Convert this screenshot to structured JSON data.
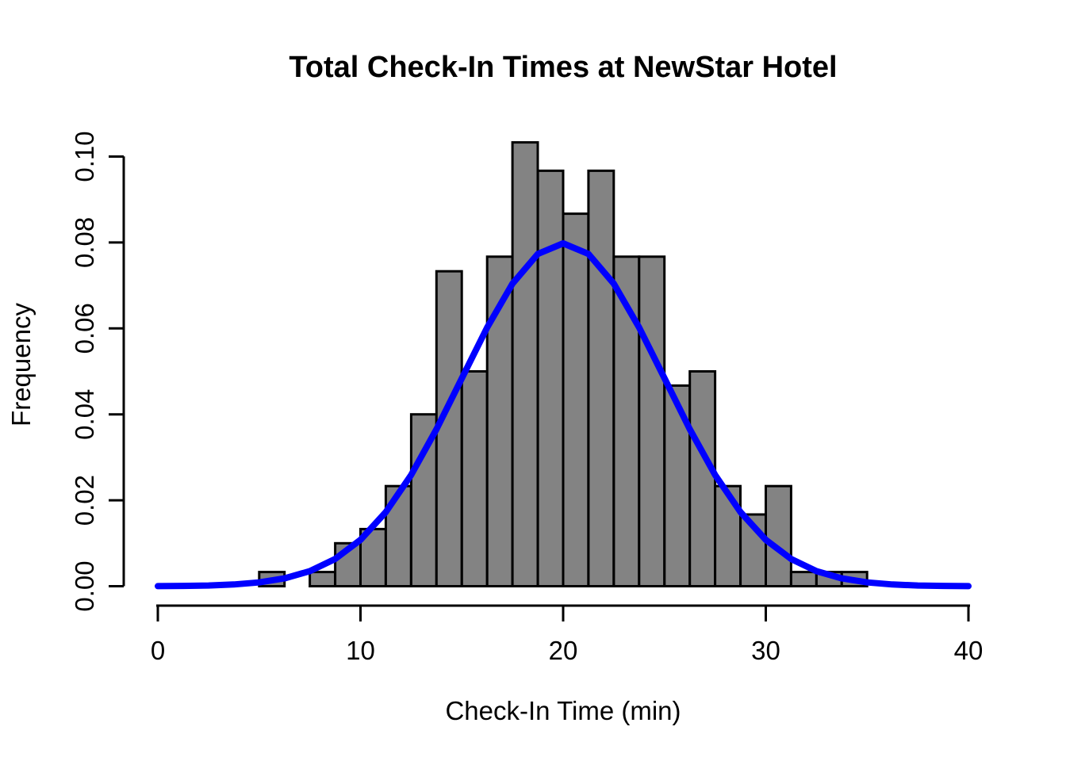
{
  "page": {
    "background": "#ffffff"
  },
  "chart_data": {
    "type": "bar",
    "subtype": "histogram-with-density-curve",
    "title": "Total Check-In Times at NewStar Hotel",
    "xlabel": "Check-In Time (min)",
    "ylabel": "Frequency",
    "xlim": [
      0,
      40
    ],
    "ylim": [
      0,
      0.1
    ],
    "x_ticks": [
      "0",
      "10",
      "20",
      "30",
      "40"
    ],
    "x_tick_values": [
      0,
      10,
      20,
      30,
      40
    ],
    "y_ticks": [
      "0.00",
      "0.02",
      "0.04",
      "0.06",
      "0.08",
      "0.10"
    ],
    "y_tick_values": [
      0,
      0.02,
      0.04,
      0.06,
      0.08,
      0.1
    ],
    "grid": false,
    "legend": null,
    "bin_width": 1.25,
    "bars": [
      {
        "start": 5.0,
        "end": 6.25,
        "density": 0.0033
      },
      {
        "start": 6.25,
        "end": 7.5,
        "density": 0
      },
      {
        "start": 7.5,
        "end": 8.75,
        "density": 0.0033
      },
      {
        "start": 8.75,
        "end": 10.0,
        "density": 0.01
      },
      {
        "start": 10.0,
        "end": 11.25,
        "density": 0.0133
      },
      {
        "start": 11.25,
        "end": 12.5,
        "density": 0.0233
      },
      {
        "start": 12.5,
        "end": 13.75,
        "density": 0.04
      },
      {
        "start": 13.75,
        "end": 15.0,
        "density": 0.0733
      },
      {
        "start": 15.0,
        "end": 16.25,
        "density": 0.05
      },
      {
        "start": 16.25,
        "end": 17.5,
        "density": 0.0767
      },
      {
        "start": 17.5,
        "end": 18.75,
        "density": 0.1033
      },
      {
        "start": 18.75,
        "end": 20.0,
        "density": 0.0967
      },
      {
        "start": 20.0,
        "end": 21.25,
        "density": 0.0867
      },
      {
        "start": 21.25,
        "end": 22.5,
        "density": 0.0967
      },
      {
        "start": 22.5,
        "end": 23.75,
        "density": 0.0767
      },
      {
        "start": 23.75,
        "end": 25.0,
        "density": 0.0767
      },
      {
        "start": 25.0,
        "end": 26.25,
        "density": 0.0467
      },
      {
        "start": 26.25,
        "end": 27.5,
        "density": 0.05
      },
      {
        "start": 27.5,
        "end": 28.75,
        "density": 0.0233
      },
      {
        "start": 28.75,
        "end": 30.0,
        "density": 0.0167
      },
      {
        "start": 30.0,
        "end": 31.25,
        "density": 0.0233
      },
      {
        "start": 31.25,
        "end": 32.5,
        "density": 0.0033
      },
      {
        "start": 32.5,
        "end": 33.75,
        "density": 0.0033
      },
      {
        "start": 33.75,
        "end": 35.0,
        "density": 0.0033
      }
    ],
    "curve": {
      "name": "normal-density-curve",
      "mean": 20,
      "sd": 5,
      "peak_density": 0.0798,
      "points": [
        [
          0,
          2.7e-05
        ],
        [
          1.25,
          7e-05
        ],
        [
          2.5,
          0.000175
        ],
        [
          3.75,
          0.000406
        ],
        [
          5,
          0.000886
        ],
        [
          6.25,
          0.00182
        ],
        [
          7.5,
          0.003506
        ],
        [
          8.75,
          0.006348
        ],
        [
          10,
          0.010798
        ],
        [
          11.25,
          0.017255
        ],
        [
          12.5,
          0.025903
        ],
        [
          13.75,
          0.036528
        ],
        [
          15,
          0.048394
        ],
        [
          16.25,
          0.060227
        ],
        [
          17.5,
          0.070413
        ],
        [
          18.75,
          0.077334
        ],
        [
          20,
          0.079788
        ],
        [
          21.25,
          0.077334
        ],
        [
          22.5,
          0.070413
        ],
        [
          23.75,
          0.060227
        ],
        [
          25,
          0.048394
        ],
        [
          26.25,
          0.036528
        ],
        [
          27.5,
          0.025903
        ],
        [
          28.75,
          0.017255
        ],
        [
          30,
          0.010798
        ],
        [
          31.25,
          0.006348
        ],
        [
          32.5,
          0.003506
        ],
        [
          33.75,
          0.00182
        ],
        [
          35,
          0.000886
        ],
        [
          36.25,
          0.000406
        ],
        [
          37.5,
          0.000175
        ],
        [
          38.75,
          7e-05
        ],
        [
          40,
          2.7e-05
        ]
      ]
    },
    "colors": {
      "bar_fill": "#838383",
      "bar_stroke": "#000000",
      "curve_stroke": "#0000FF",
      "axis": "#000000",
      "text": "#000000"
    }
  }
}
